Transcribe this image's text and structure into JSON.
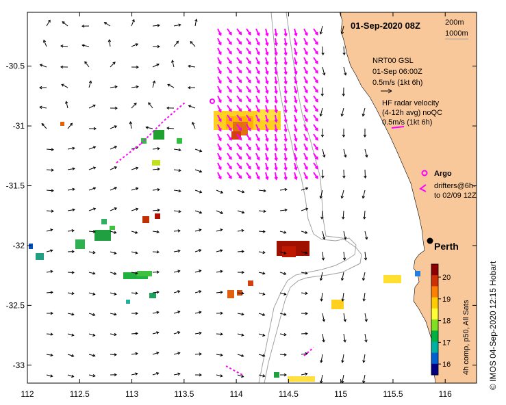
{
  "title": "01-Sep-2020 08Z",
  "depth_legend": {
    "d1": "200m",
    "d2": "1000m"
  },
  "model_legend": {
    "line1": "NRT00 GSL",
    "line2": "01-Sep 06:00Z",
    "line3": "0.5m/s (1kt 6h)"
  },
  "radar_legend": {
    "line1": "HF radar velocity",
    "line2": "(4-12h avg) noQC",
    "line3": "0.5m/s (1kt 6h)"
  },
  "argo_label": "Argo",
  "drifters_label": {
    "line1": "drifters@6h-",
    "line2": "to 02/09 12Z"
  },
  "city": "Perth",
  "colorbar": {
    "label": "4h comp, p50, All Sats",
    "ticks": [
      "20",
      "19",
      "18",
      "17",
      "16"
    ],
    "colors": [
      "#8b0000",
      "#d03000",
      "#ff8000",
      "#ffcc00",
      "#ffff33",
      "#80e020",
      "#00b040",
      "#00b0a0",
      "#0060d0",
      "#000080"
    ]
  },
  "credit": "© IMOS 04-Sep-2020 12:15 Hobart",
  "axes": {
    "x_ticks": [
      "112",
      "112.5",
      "113",
      "113.5",
      "114",
      "114.5",
      "115",
      "115.5",
      "116"
    ],
    "y_ticks": [
      "-30.5",
      "-31",
      "-31.5",
      "-32",
      "-32.5",
      "-33"
    ],
    "xlim": [
      112,
      116.3
    ],
    "ylim": [
      -33.15,
      -30.05
    ]
  },
  "colors": {
    "land": "#f9c89a",
    "vector_model": "#000000",
    "vector_radar": "#ff00ff",
    "isobath": "#a0a0a0"
  }
}
